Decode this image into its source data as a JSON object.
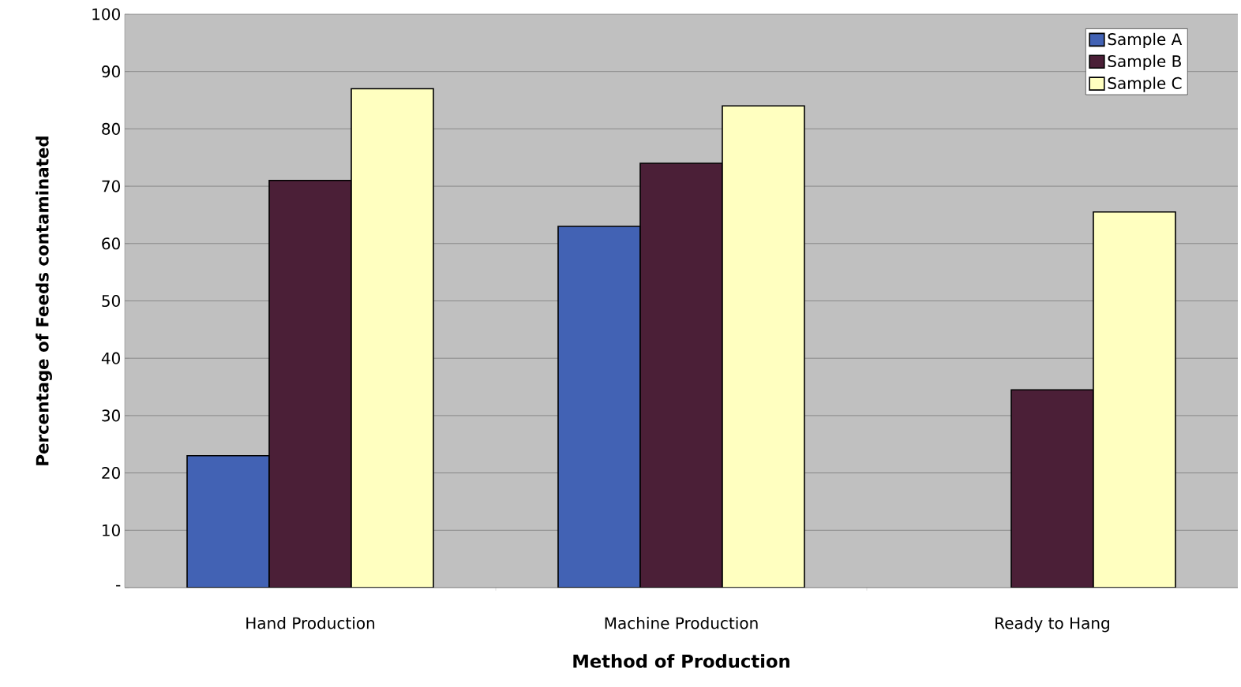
{
  "chart_data": {
    "type": "bar",
    "xlabel": "Method of Production",
    "ylabel": "Percentage of Feeds contaminated",
    "categories": [
      "Hand Production",
      "Machine Production",
      "Ready to Hang"
    ],
    "series": [
      {
        "name": "Sample A",
        "color": "#4262b4",
        "values": [
          23,
          63,
          null
        ]
      },
      {
        "name": "Sample B",
        "color": "#4b1f37",
        "values": [
          71,
          74,
          34.5
        ]
      },
      {
        "name": "Sample C",
        "color": "#ffffc0",
        "values": [
          87,
          84,
          65.5
        ]
      }
    ],
    "ylim": [
      0,
      100
    ],
    "yticks": [
      {
        "value": 0,
        "label": "-"
      },
      10,
      20,
      30,
      40,
      50,
      60,
      70,
      80,
      90,
      100
    ],
    "grid": "y",
    "legend": "top right"
  }
}
